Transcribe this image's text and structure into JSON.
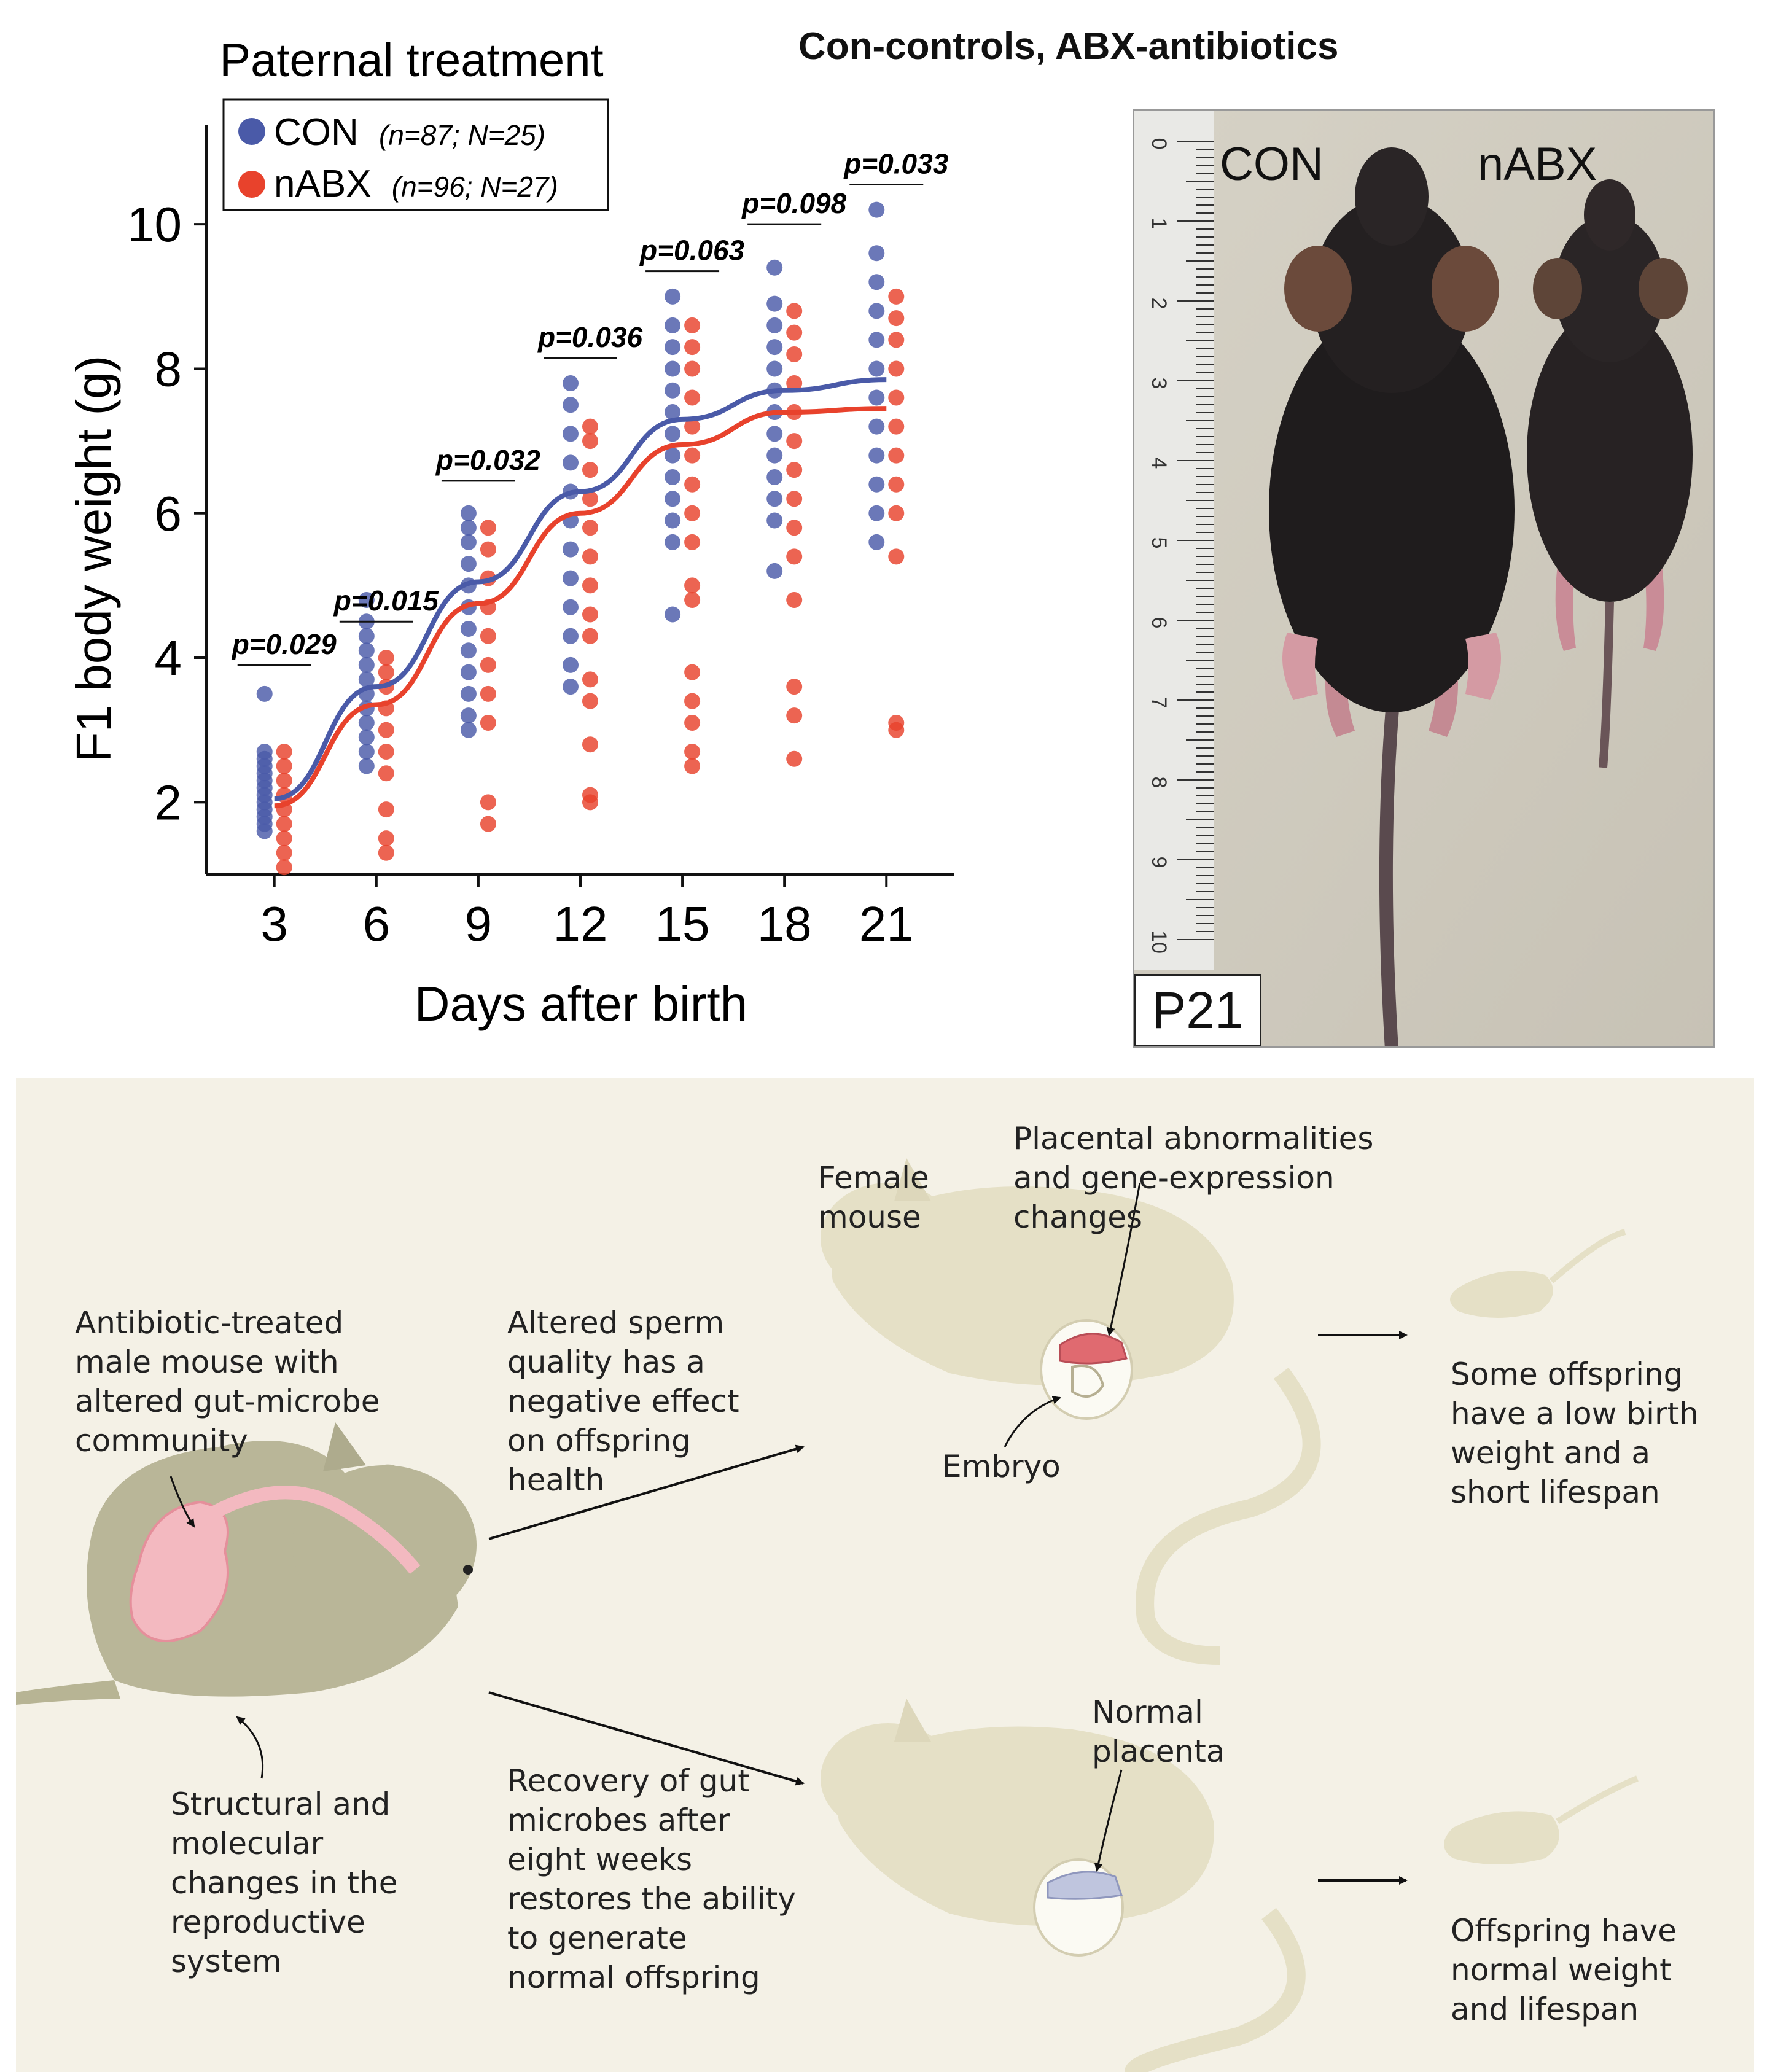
{
  "header": {
    "title": "Con-controls, ABX-antibiotics"
  },
  "chart_data": {
    "type": "scatter",
    "title": "Paternal treatment",
    "xlabel": "Days after birth",
    "ylabel": "F1 body weight (g)",
    "x_ticks": [
      3,
      6,
      9,
      12,
      15,
      18,
      21
    ],
    "y_ticks": [
      2,
      4,
      6,
      8,
      10
    ],
    "xlim": [
      1,
      23
    ],
    "ylim": [
      1,
      11.2
    ],
    "grid": false,
    "legend_position": "top-left",
    "series": [
      {
        "key": "CON",
        "name": "CON",
        "legend_detail": "(n=87; N=25)",
        "color": "#4a5aa8",
        "fit_line": [
          [
            3,
            2.05
          ],
          [
            6,
            3.6
          ],
          [
            9,
            5.05
          ],
          [
            12,
            6.3
          ],
          [
            15,
            7.3
          ],
          [
            18,
            7.7
          ],
          [
            21,
            7.85
          ]
        ],
        "points": {
          "3": [
            1.6,
            1.7,
            1.8,
            1.9,
            2.0,
            2.1,
            2.2,
            2.3,
            2.4,
            2.5,
            2.6,
            2.7,
            3.5
          ],
          "6": [
            2.5,
            2.7,
            2.9,
            3.1,
            3.3,
            3.5,
            3.7,
            3.9,
            4.1,
            4.3,
            4.5,
            4.8
          ],
          "9": [
            3.0,
            3.2,
            3.5,
            3.8,
            4.1,
            4.4,
            4.7,
            5.0,
            5.3,
            5.6,
            5.8,
            6.0
          ],
          "12": [
            3.6,
            3.9,
            4.3,
            4.7,
            5.1,
            5.5,
            5.9,
            6.3,
            6.7,
            7.1,
            7.5,
            7.8
          ],
          "15": [
            4.6,
            5.6,
            5.9,
            6.2,
            6.5,
            6.8,
            7.1,
            7.4,
            7.7,
            8.0,
            8.3,
            8.6,
            9.0
          ],
          "18": [
            5.2,
            5.9,
            6.2,
            6.5,
            6.8,
            7.1,
            7.4,
            7.7,
            8.0,
            8.3,
            8.6,
            8.9,
            9.4
          ],
          "21": [
            5.6,
            6.0,
            6.4,
            6.8,
            7.2,
            7.6,
            8.0,
            8.4,
            8.8,
            9.2,
            9.6,
            10.2
          ]
        }
      },
      {
        "key": "nABX",
        "name": "nABX",
        "legend_detail": "(n=96; N=27)",
        "color": "#e8422c",
        "fit_line": [
          [
            3,
            1.95
          ],
          [
            6,
            3.35
          ],
          [
            9,
            4.75
          ],
          [
            12,
            6.0
          ],
          [
            15,
            6.95
          ],
          [
            18,
            7.4
          ],
          [
            21,
            7.45
          ]
        ],
        "points": {
          "3": [
            1.1,
            1.3,
            1.5,
            1.7,
            1.9,
            2.1,
            2.3,
            2.5,
            2.7
          ],
          "6": [
            1.3,
            1.5,
            1.9,
            2.4,
            2.7,
            3.0,
            3.3,
            3.6,
            3.8,
            4.0
          ],
          "9": [
            1.7,
            2.0,
            3.1,
            3.5,
            3.9,
            4.3,
            4.7,
            5.1,
            5.5,
            5.8
          ],
          "12": [
            2.0,
            2.1,
            2.8,
            3.4,
            3.7,
            4.3,
            4.6,
            5.0,
            5.4,
            5.8,
            6.2,
            6.6,
            7.0,
            7.2
          ],
          "15": [
            2.5,
            2.7,
            3.1,
            3.4,
            3.8,
            4.8,
            5.0,
            5.6,
            6.0,
            6.4,
            6.8,
            7.2,
            7.6,
            8.0,
            8.3,
            8.6
          ],
          "18": [
            2.6,
            3.2,
            3.6,
            4.8,
            5.4,
            5.8,
            6.2,
            6.6,
            7.0,
            7.4,
            7.8,
            8.2,
            8.5,
            8.8
          ],
          "21": [
            3.0,
            3.1,
            5.4,
            6.0,
            6.4,
            6.8,
            7.2,
            7.6,
            8.0,
            8.4,
            8.7,
            9.0
          ]
        }
      }
    ],
    "pvalues": [
      {
        "day": 3,
        "label": "p=0.029",
        "y": 3.9
      },
      {
        "day": 6,
        "label": "p=0.015",
        "y": 4.5
      },
      {
        "day": 9,
        "label": "p=0.032",
        "y": 6.45
      },
      {
        "day": 12,
        "label": "p=0.036",
        "y": 8.15
      },
      {
        "day": 15,
        "label": "p=0.063",
        "y": 9.35
      },
      {
        "day": 18,
        "label": "p=0.098",
        "y": 10.0
      },
      {
        "day": 21,
        "label": "p=0.033",
        "y": 10.55
      }
    ]
  },
  "photo": {
    "con_label": "CON",
    "nabx_label": "nABX",
    "age_label": "P21",
    "ruler_labels": [
      "0",
      "1",
      "2",
      "3",
      "4",
      "5",
      "6",
      "7",
      "8",
      "9",
      "10"
    ]
  },
  "diagram": {
    "male_note": "Antibiotic-treated male mouse with altered gut-microbe community",
    "repro_note": "Structural and molecular changes in the reproductive system",
    "sperm_note": "Altered sperm quality has a negative effect on offspring health",
    "recovery_note": "Recovery of gut microbes after eight weeks restores the ability to generate normal offspring",
    "female_label": "Female mouse",
    "placenta_abnormal": "Placental abnormalities and gene-expression changes",
    "embryo_label": "Embryo",
    "outcome_bad": "Some offspring have a low birth weight and a short lifespan",
    "normal_placenta": "Normal placenta",
    "outcome_good": "Offspring have normal weight and lifespan"
  }
}
